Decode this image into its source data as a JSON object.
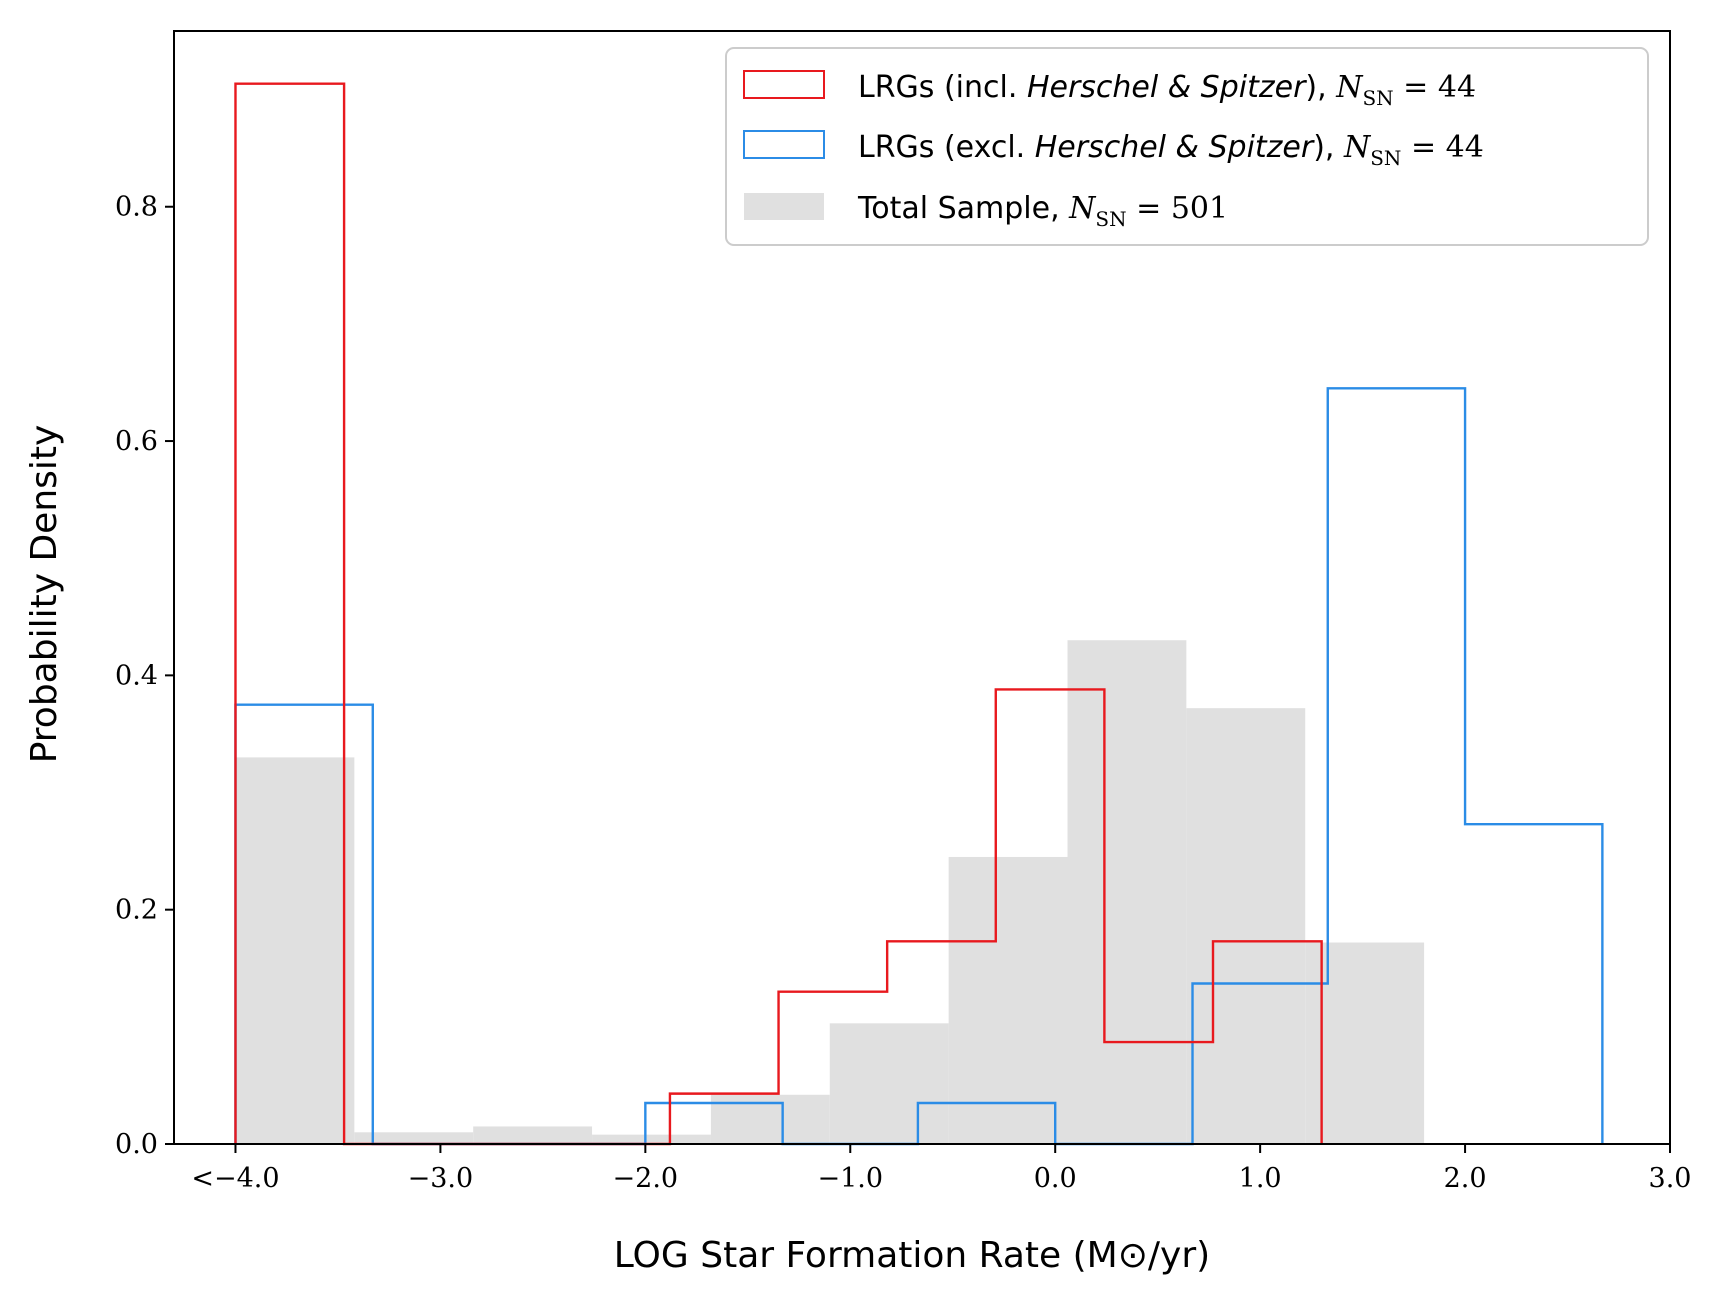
{
  "chart_data": {
    "type": "histogram",
    "xlabel": "LOG Star Formation Rate (M⊙/yr)",
    "ylabel": "Probability Density",
    "xlim": [
      -4.3,
      3.0
    ],
    "ylim": [
      0.0,
      0.95
    ],
    "x_ticks": [
      {
        "value": -4.0,
        "label": "<−4.0"
      },
      {
        "value": -3.0,
        "label": "−3.0"
      },
      {
        "value": -2.0,
        "label": "−2.0"
      },
      {
        "value": -1.0,
        "label": "−1.0"
      },
      {
        "value": 0.0,
        "label": "0.0"
      },
      {
        "value": 1.0,
        "label": "1.0"
      },
      {
        "value": 2.0,
        "label": "2.0"
      },
      {
        "value": 3.0,
        "label": "3.0"
      }
    ],
    "y_ticks": [
      {
        "value": 0.0,
        "label": "0.0"
      },
      {
        "value": 0.2,
        "label": "0.2"
      },
      {
        "value": 0.4,
        "label": "0.4"
      },
      {
        "value": 0.6,
        "label": "0.6"
      },
      {
        "value": 0.8,
        "label": "0.8"
      }
    ],
    "legend_position": "top-right",
    "series": [
      {
        "name": "total",
        "style": "filled",
        "color": "#e0e0e0",
        "legend": {
          "prefix": "Total Sample, ",
          "n": "501"
        },
        "edges": [
          -4.0,
          -3.42,
          -2.84,
          -2.26,
          -1.68,
          -1.1,
          -0.52,
          0.06,
          0.64,
          1.22,
          1.8
        ],
        "values": [
          0.33,
          0.01,
          0.015,
          0.008,
          0.042,
          0.103,
          0.245,
          0.43,
          0.372,
          0.172
        ]
      },
      {
        "name": "lrg_excl",
        "style": "step",
        "color": "#2b8ce6",
        "legend": {
          "prefix": "LRGs (excl. ",
          "italic": "Herschel & Spitzer",
          "suffix": "), ",
          "n": "44"
        },
        "edges": [
          -4.0,
          -3.33,
          -2.0,
          -1.33,
          -0.67,
          0.0,
          0.67,
          1.33,
          2.0,
          2.67
        ],
        "values": [
          0.375,
          0.0,
          0.035,
          0.0,
          0.035,
          0.0,
          0.137,
          0.645,
          0.273
        ]
      },
      {
        "name": "lrg_incl",
        "style": "step",
        "color": "#e8191e",
        "legend": {
          "prefix": "LRGs (incl. ",
          "italic": "Herschel & Spitzer",
          "suffix": "), ",
          "n": "44"
        },
        "edges": [
          -4.0,
          -3.47,
          -1.88,
          -1.35,
          -0.82,
          -0.29,
          0.24,
          0.77,
          1.3
        ],
        "values": [
          0.905,
          0.0,
          0.043,
          0.13,
          0.173,
          0.388,
          0.087,
          0.173
        ]
      }
    ]
  }
}
